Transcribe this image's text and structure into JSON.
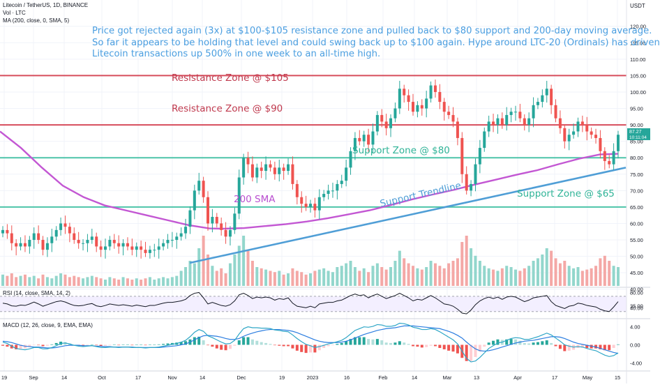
{
  "header": {
    "symbol_line": "Litecoin / TetherUS, 1D, BINANCE",
    "volume_line": "Vol · LTC",
    "ma_line": "MA (200, close, 0, SMA, 5)",
    "currency": "USDT"
  },
  "annotation": {
    "lines": [
      "Price got rejected again (3x) at $100-$105 resistance zone and pulled back to $80 support and 200-day moving average.",
      "So far it appears to be holding that level and could swing back up to $100 again. Hype around LTC-20 (Ordinals) has driven",
      "Litecoin transactions up 500% in one week to an all-time high."
    ]
  },
  "colors": {
    "resistance": "#d64c5b",
    "support": "#4dc4a9",
    "ma200": "#c357d3",
    "trendline": "#4f9ed6",
    "annotation": "#4a9ee0",
    "up": "#26a69a",
    "down": "#ef5350",
    "volume_up": "#92d6cc",
    "volume_down": "#f4a8a6",
    "rsi_line": "#131722",
    "macd_line": "#2ea6c6",
    "signal_line": "#2ea6c6"
  },
  "chart_data": {
    "type": "candlestick",
    "title": "Litecoin / TetherUS, 1D, BINANCE",
    "price_axis": {
      "unit": "USDT",
      "ylim": [
        41,
        128
      ],
      "ticks": [
        "120.00",
        "115.00",
        "110.00",
        "105.00",
        "100.00",
        "95.00",
        "90.00",
        "85.00",
        "80.00",
        "75.00",
        "70.00",
        "65.00",
        "60.00",
        "55.00",
        "50.00",
        "45.00",
        "40.00",
        "35.00"
      ]
    },
    "current_price": {
      "value": 87.27,
      "label": "87.27",
      "countdown": "10:11:04"
    },
    "time_axis": {
      "labels": [
        "19",
        "Sep",
        "14",
        "Oct",
        "17",
        "Nov",
        "14",
        "Dec",
        "19",
        "2023",
        "16",
        "Feb",
        "14",
        "Mar",
        "13",
        "Apr",
        "17",
        "May",
        "15"
      ]
    },
    "levels": [
      {
        "label": "Resistance Zone @ $105",
        "value": 105,
        "kind": "resistance"
      },
      {
        "label": "Resistance Zone @ $90",
        "value": 90,
        "kind": "resistance"
      },
      {
        "label": "Support Zone @ $80",
        "value": 80,
        "kind": "support"
      },
      {
        "label": "Support Zone @ $65",
        "value": 65,
        "kind": "support"
      }
    ],
    "ma_label": "200 SMA",
    "trendline_label": "Support Trendline",
    "ma200": [
      [
        0,
        88
      ],
      [
        30,
        83
      ],
      [
        60,
        77
      ],
      [
        90,
        71.5
      ],
      [
        120,
        68
      ],
      [
        150,
        65.5
      ],
      [
        180,
        64
      ],
      [
        210,
        62.5
      ],
      [
        240,
        61
      ],
      [
        270,
        59.5
      ],
      [
        300,
        58.5
      ],
      [
        320,
        58.4
      ],
      [
        350,
        58.6
      ],
      [
        380,
        59.2
      ],
      [
        410,
        59.8
      ],
      [
        440,
        60.6
      ],
      [
        470,
        61.6
      ],
      [
        500,
        62.8
      ],
      [
        530,
        64
      ],
      [
        560,
        65.6
      ],
      [
        590,
        67.3
      ],
      [
        620,
        68.8
      ],
      [
        650,
        70.2
      ],
      [
        680,
        71.8
      ],
      [
        710,
        73.3
      ],
      [
        740,
        74.8
      ],
      [
        770,
        76.2
      ],
      [
        800,
        78
      ],
      [
        830,
        79.7
      ],
      [
        860,
        81
      ],
      [
        886,
        81.2
      ]
    ],
    "trendline": {
      "from": [
        272,
        48
      ],
      "to": [
        897,
        77
      ]
    },
    "price_series": [
      58,
      57,
      54,
      53,
      54,
      53,
      55,
      57,
      55,
      52,
      54,
      56,
      58,
      60,
      59,
      57,
      55,
      54,
      54,
      55,
      56,
      53,
      52,
      53,
      55,
      54,
      53,
      54,
      53,
      52,
      53,
      52,
      51,
      52,
      52,
      53,
      54,
      55,
      55,
      56,
      57,
      59,
      64,
      70,
      73,
      68,
      60,
      62,
      60,
      58,
      56,
      58,
      63,
      74,
      80,
      78,
      74,
      77,
      76,
      78,
      77,
      75,
      77,
      76,
      78,
      72,
      68,
      66,
      65,
      66,
      64,
      68,
      69,
      70,
      70,
      72,
      73,
      77,
      82,
      86,
      85,
      87,
      84,
      88,
      93,
      91,
      89,
      92,
      95,
      101,
      99,
      97,
      94,
      96,
      95,
      98,
      102,
      100,
      97,
      94,
      93,
      91,
      86,
      75,
      70,
      72,
      78,
      83,
      88,
      91,
      90,
      92,
      90,
      93,
      94,
      94,
      92,
      90,
      92,
      96,
      97,
      99,
      101,
      96,
      92,
      89,
      85,
      87,
      88,
      91,
      90,
      88,
      87,
      86,
      82,
      79,
      78,
      82,
      87
    ],
    "volume_series": [
      9,
      8,
      10,
      7,
      8,
      9,
      7,
      8,
      6,
      9,
      7,
      6,
      8,
      10,
      9,
      7,
      8,
      7,
      6,
      7,
      8,
      7,
      6,
      5,
      7,
      6,
      5,
      7,
      6,
      5,
      6,
      5,
      6,
      7,
      5,
      6,
      7,
      6,
      7,
      8,
      12,
      15,
      20,
      18,
      30,
      40,
      25,
      16,
      12,
      14,
      10,
      18,
      25,
      32,
      40,
      28,
      20,
      15,
      14,
      13,
      12,
      11,
      12,
      9,
      10,
      14,
      12,
      11,
      9,
      10,
      12,
      13,
      14,
      12,
      11,
      15,
      16,
      18,
      20,
      15,
      12,
      14,
      11,
      16,
      18,
      15,
      13,
      15,
      20,
      28,
      22,
      18,
      16,
      14,
      13,
      15,
      20,
      18,
      16,
      14,
      18,
      20,
      22,
      35,
      40,
      30,
      24,
      20,
      16,
      14,
      13,
      12,
      14,
      16,
      15,
      13,
      12,
      14,
      16,
      20,
      22,
      25,
      30,
      28,
      22,
      18,
      20,
      16,
      14,
      15,
      12,
      13,
      14,
      16,
      22,
      24,
      20,
      16,
      15
    ],
    "rsi": {
      "label": "RSI (14, close, SMA, 14, 2)",
      "ticks": [
        "80.00",
        "40.00"
      ],
      "upper": 70,
      "lower": 30,
      "values": [
        52,
        50,
        45,
        44,
        47,
        46,
        50,
        55,
        50,
        44,
        48,
        52,
        56,
        58,
        55,
        50,
        46,
        45,
        46,
        49,
        51,
        45,
        43,
        46,
        50,
        48,
        46,
        48,
        46,
        44,
        47,
        45,
        43,
        46,
        46,
        49,
        52,
        54,
        54,
        56,
        58,
        62,
        72,
        78,
        80,
        66,
        50,
        54,
        50,
        46,
        44,
        48,
        58,
        74,
        78,
        72,
        64,
        68,
        66,
        68,
        66,
        60,
        64,
        62,
        66,
        52,
        44,
        42,
        40,
        44,
        40,
        50,
        52,
        54,
        54,
        58,
        60,
        66,
        72,
        76,
        72,
        74,
        66,
        72,
        76,
        70,
        64,
        68,
        72,
        78,
        72,
        66,
        58,
        62,
        60,
        66,
        72,
        66,
        58,
        50,
        48,
        44,
        36,
        26,
        24,
        34,
        48,
        58,
        64,
        68,
        64,
        68,
        62,
        68,
        70,
        68,
        62,
        56,
        60,
        66,
        68,
        70,
        72,
        56,
        46,
        42,
        38,
        44,
        46,
        52,
        50,
        46,
        44,
        42,
        36,
        32,
        30,
        42,
        56
      ]
    },
    "macd": {
      "label": "MACD (12, 26, close, 9, EMA, EMA)",
      "ticks": [
        "4.00",
        "0.00",
        "-4.00"
      ],
      "macd": [
        0.6,
        0.3,
        -0.3,
        -0.8,
        -1.0,
        -1.1,
        -0.9,
        -0.6,
        -0.6,
        -0.9,
        -0.9,
        -0.6,
        -0.2,
        0.3,
        0.4,
        0.2,
        -0.1,
        -0.3,
        -0.4,
        -0.3,
        -0.2,
        -0.4,
        -0.6,
        -0.6,
        -0.5,
        -0.5,
        -0.6,
        -0.5,
        -0.5,
        -0.6,
        -0.6,
        -0.6,
        -0.7,
        -0.6,
        -0.6,
        -0.5,
        -0.3,
        -0.1,
        0.1,
        0.3,
        0.6,
        1.0,
        1.8,
        2.8,
        3.4,
        3.0,
        2.0,
        1.6,
        1.1,
        0.6,
        0.2,
        0.3,
        1.0,
        2.4,
        3.6,
        4.0,
        3.8,
        3.8,
        3.7,
        3.7,
        3.6,
        3.3,
        3.2,
        3.0,
        2.9,
        2.2,
        1.4,
        0.7,
        0.1,
        -0.2,
        -0.6,
        -0.4,
        -0.1,
        0.2,
        0.4,
        0.7,
        1.0,
        1.6,
        2.4,
        3.2,
        3.6,
        4.0,
        3.9,
        4.1,
        4.5,
        4.4,
        4.1,
        4.1,
        4.3,
        4.8,
        4.7,
        4.4,
        3.9,
        3.7,
        3.4,
        3.4,
        3.6,
        3.4,
        2.9,
        2.3,
        1.7,
        1.1,
        0.2,
        -1.4,
        -3.0,
        -3.8,
        -3.6,
        -2.8,
        -1.8,
        -0.8,
        -0.2,
        0.4,
        0.6,
        1.0,
        1.4,
        1.6,
        1.5,
        1.2,
        1.2,
        1.5,
        1.8,
        2.2,
        2.6,
        2.2,
        1.5,
        0.8,
        0.0,
        -0.3,
        -0.5,
        -0.4,
        -0.5,
        -0.8,
        -1.1,
        -1.3,
        -1.8,
        -2.3,
        -2.6,
        -2.4,
        -1.8
      ],
      "signal": [
        0.8,
        0.7,
        0.5,
        0.2,
        -0.1,
        -0.3,
        -0.4,
        -0.5,
        -0.5,
        -0.6,
        -0.7,
        -0.7,
        -0.6,
        -0.4,
        -0.2,
        -0.1,
        -0.1,
        -0.1,
        -0.2,
        -0.2,
        -0.2,
        -0.3,
        -0.3,
        -0.4,
        -0.4,
        -0.5,
        -0.5,
        -0.5,
        -0.5,
        -0.5,
        -0.6,
        -0.6,
        -0.6,
        -0.6,
        -0.6,
        -0.6,
        -0.5,
        -0.4,
        -0.3,
        -0.2,
        0.0,
        0.2,
        0.6,
        1.1,
        1.6,
        2.0,
        2.1,
        2.0,
        1.9,
        1.7,
        1.4,
        1.2,
        1.2,
        1.4,
        1.9,
        2.3,
        2.6,
        2.9,
        3.1,
        3.3,
        3.4,
        3.4,
        3.4,
        3.3,
        3.2,
        3.0,
        2.7,
        2.3,
        1.9,
        1.5,
        1.1,
        0.8,
        0.6,
        0.5,
        0.5,
        0.5,
        0.6,
        0.8,
        1.1,
        1.5,
        1.9,
        2.3,
        2.6,
        2.9,
        3.2,
        3.4,
        3.6,
        3.7,
        3.8,
        4.0,
        4.2,
        4.2,
        4.2,
        4.1,
        4.0,
        3.9,
        3.8,
        3.7,
        3.6,
        3.3,
        3.0,
        2.6,
        2.1,
        1.5,
        0.6,
        -0.2,
        -0.9,
        -1.3,
        -1.4,
        -1.3,
        -1.1,
        -0.8,
        -0.5,
        -0.2,
        0.1,
        0.4,
        0.6,
        0.8,
        0.9,
        1.0,
        1.2,
        1.4,
        1.6,
        1.8,
        1.8,
        1.7,
        1.4,
        1.0,
        0.6,
        0.3,
        0.1,
        -0.1,
        -0.3,
        -0.5,
        -0.8,
        -1.1,
        -1.4,
        -1.7,
        -1.9
      ]
    }
  }
}
